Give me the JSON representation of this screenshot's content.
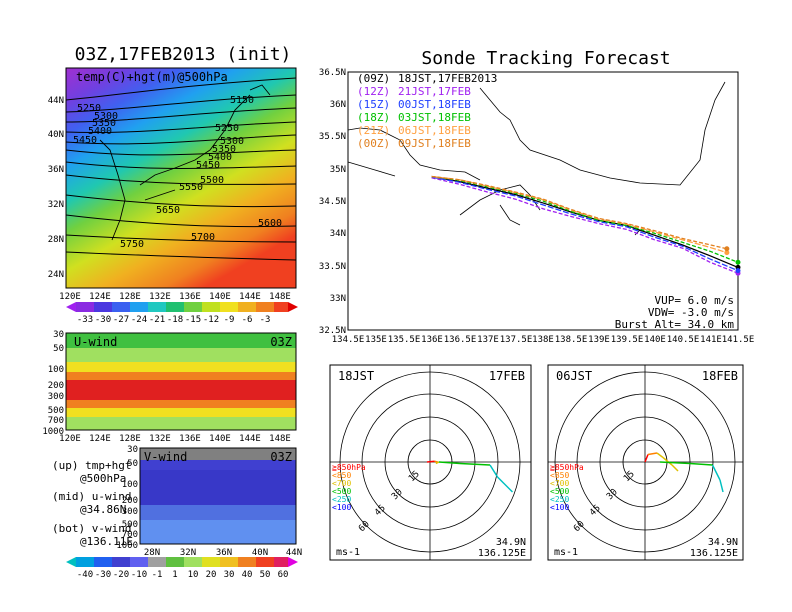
{
  "main_title": "Sonde Tracking Forecast",
  "map_panel": {
    "title": "03Z,17FEB2013 (init)",
    "subtitle": "temp(C)+hgt(m)@500hPa",
    "contour_labels": [
      {
        "text": "5150"
      },
      {
        "text": "5250"
      },
      {
        "text": "5300"
      },
      {
        "text": "5350"
      },
      {
        "text": "5400"
      },
      {
        "text": "5450"
      },
      {
        "text": "5250"
      },
      {
        "text": "5300"
      },
      {
        "text": "5350"
      },
      {
        "text": "5400"
      },
      {
        "text": "5450"
      },
      {
        "text": "5500"
      },
      {
        "text": "5550"
      },
      {
        "text": "5650"
      },
      {
        "text": "5600"
      },
      {
        "text": "5700"
      },
      {
        "text": "5750"
      }
    ],
    "lat_labels": [
      "44N",
      "40N",
      "36N",
      "32N",
      "28N",
      "24N"
    ],
    "lon_labels": [
      "120E",
      "124E",
      "128E",
      "132E",
      "136E",
      "140E",
      "144E",
      "148E"
    ],
    "temp_colorbar_labels": [
      "-33",
      "-30",
      "-27",
      "-24",
      "-21",
      "-18",
      "-15",
      "-12",
      "-9",
      "-6",
      "-3"
    ]
  },
  "uwind_panel": {
    "title": "U-wind",
    "time": "03Z",
    "pressure_labels": [
      "30",
      "50",
      "100",
      "200",
      "300",
      "500",
      "700",
      "1000"
    ],
    "lon_labels": [
      "120E",
      "124E",
      "128E",
      "132E",
      "136E",
      "140E",
      "144E",
      "148E"
    ]
  },
  "vwind_panel": {
    "title": "V-wind",
    "time": "03Z",
    "pressure_labels": [
      "30",
      "50",
      "100",
      "200",
      "300",
      "500",
      "700",
      "1000"
    ],
    "lat_labels": [
      "28N",
      "32N",
      "36N",
      "40N",
      "44N"
    ]
  },
  "notes": {
    "up_1": "(up) tmp+hgt",
    "up_2": "@500hPa",
    "mid_1": "(mid) u-wind",
    "mid_2": "@34.86N",
    "bot_1": "(bot) v-wind",
    "bot_2": "@136.11E"
  },
  "wind_colorbar_labels": [
    "-40",
    "-30",
    "-20",
    "-10",
    "-1",
    "1",
    "10",
    "20",
    "30",
    "40",
    "50",
    "60"
  ],
  "track_panel": {
    "lat_labels": [
      "36.5N",
      "36N",
      "35.5N",
      "35N",
      "34.5N",
      "34N",
      "33.5N",
      "33N",
      "32.5N"
    ],
    "lon_labels": [
      "134.5E",
      "135E",
      "135.5E",
      "136E",
      "136.5E",
      "137E",
      "137.5E",
      "138E",
      "138.5E",
      "139E",
      "139.5E",
      "140E",
      "140.5E",
      "141E",
      "141.5E"
    ],
    "legend": [
      {
        "init": "(09Z)",
        "label": "18JST,17FEB2013",
        "color": "#000000"
      },
      {
        "init": "(12Z)",
        "label": "21JST,17FEB",
        "color": "#a020f0"
      },
      {
        "init": "(15Z)",
        "label": "00JST,18FEB",
        "color": "#2040ff"
      },
      {
        "init": "(18Z)",
        "label": "03JST,18FEB",
        "color": "#00c000"
      },
      {
        "init": "(21Z)",
        "label": "06JST,18FEB",
        "color": "#ffa040"
      },
      {
        "init": "(00Z)",
        "label": "09JST,18FEB",
        "color": "#e08020"
      }
    ],
    "params": {
      "vup": "VUP=  6.0 m/s",
      "vdw": "VDW= -3.0 m/s",
      "burst": "Burst Alt= 34.0 km"
    }
  },
  "hodo_left": {
    "time_label": "18JST",
    "date_label": "17FEB",
    "ring_labels": [
      "15",
      "30",
      "45",
      "60"
    ],
    "levels": [
      {
        "text": "≧850hPa",
        "color": "#ff0000"
      },
      {
        "text": "<850",
        "color": "#ff8000"
      },
      {
        "text": "<700",
        "color": "#e0c000"
      },
      {
        "text": "<500",
        "color": "#00c000"
      },
      {
        "text": "<250",
        "color": "#00c0c0"
      },
      {
        "text": "<100",
        "color": "#0000ff"
      }
    ],
    "unit": "ms-1",
    "lat": "34.9N",
    "lon": "136.125E"
  },
  "hodo_right": {
    "time_label": "06JST",
    "date_label": "18FEB",
    "ring_labels": [
      "15",
      "30",
      "45",
      "60"
    ],
    "levels": [
      {
        "text": "≧850hPa",
        "color": "#ff0000"
      },
      {
        "text": "<850",
        "color": "#ff8000"
      },
      {
        "text": "<700",
        "color": "#e0c000"
      },
      {
        "text": "<500",
        "color": "#00c000"
      },
      {
        "text": "<250",
        "color": "#00c0c0"
      },
      {
        "text": "<100",
        "color": "#0000ff"
      }
    ],
    "unit": "ms-1",
    "lat": "34.9N",
    "lon": "136.125E"
  },
  "chart_data": [
    {
      "type": "line",
      "title": "Sonde Tracking Forecast",
      "xlim": [
        134.5,
        141.5
      ],
      "ylim": [
        32.5,
        36.5
      ],
      "series": [
        {
          "name": "18JST,17FEB2013",
          "color": "#000000",
          "x": [
            136.0,
            136.5,
            137.0,
            137.5,
            138.0,
            138.5,
            139.0,
            139.5,
            140.0,
            140.5,
            141.0,
            141.5
          ],
          "y": [
            34.88,
            34.8,
            34.7,
            34.6,
            34.47,
            34.33,
            34.2,
            34.12,
            33.97,
            33.82,
            33.65,
            33.47
          ]
        },
        {
          "name": "21JST,17FEB",
          "color": "#a020f0",
          "x": [
            136.0,
            136.5,
            137.0,
            137.5,
            138.0,
            138.5,
            139.0,
            139.5,
            140.0,
            140.5,
            141.0,
            141.5
          ],
          "y": [
            34.86,
            34.76,
            34.64,
            34.53,
            34.38,
            34.26,
            34.15,
            34.06,
            33.9,
            33.77,
            33.55,
            33.38
          ]
        },
        {
          "name": "00JST,18FEB",
          "color": "#2040ff",
          "x": [
            136.0,
            136.5,
            137.0,
            137.5,
            138.0,
            138.5,
            139.0,
            139.5,
            140.0,
            140.5,
            141.0,
            141.5
          ],
          "y": [
            34.87,
            34.79,
            34.68,
            34.58,
            34.44,
            34.3,
            34.18,
            34.1,
            33.94,
            33.8,
            33.6,
            33.42
          ]
        },
        {
          "name": "03JST,18FEB",
          "color": "#00c000",
          "x": [
            136.0,
            136.5,
            137.0,
            137.5,
            138.0,
            138.5,
            139.0,
            139.5,
            140.0,
            140.5,
            141.0,
            141.5
          ],
          "y": [
            34.88,
            34.82,
            34.72,
            34.62,
            34.5,
            34.34,
            34.2,
            34.12,
            34.0,
            33.86,
            33.72,
            33.55
          ]
        },
        {
          "name": "06JST,18FEB",
          "color": "#ffa040",
          "x": [
            136.0,
            136.5,
            137.0,
            137.5,
            138.0,
            138.5,
            139.0,
            139.5,
            140.0,
            140.5,
            141.0,
            141.3
          ],
          "y": [
            34.88,
            34.83,
            34.73,
            34.63,
            34.52,
            34.36,
            34.22,
            34.14,
            34.02,
            33.9,
            33.78,
            33.7
          ]
        },
        {
          "name": "09JST,18FEB",
          "color": "#e08020",
          "x": [
            136.0,
            136.5,
            137.0,
            137.5,
            138.0,
            138.5,
            139.0,
            139.5,
            140.0,
            140.5,
            141.0,
            141.3
          ],
          "y": [
            34.88,
            34.83,
            34.74,
            34.64,
            34.53,
            34.37,
            34.23,
            34.15,
            34.04,
            33.92,
            33.82,
            33.76
          ]
        }
      ]
    },
    {
      "type": "line",
      "title": "18JST 17FEB",
      "series": [
        {
          "name": "hodograph",
          "u": [
            -2,
            3,
            5,
            4,
            6
          ],
          "v": [
            0,
            0.5,
            0,
            -1,
            0
          ]
        },
        {
          "name": "upper",
          "u": [
            6,
            20,
            40,
            45,
            55
          ],
          "v": [
            0,
            -1,
            -2,
            -10,
            -20
          ]
        }
      ]
    },
    {
      "type": "line",
      "title": "06JST 18FEB",
      "series": [
        {
          "name": "hodograph",
          "u": [
            0,
            2,
            8,
            12,
            18,
            22
          ],
          "v": [
            0,
            5,
            6,
            3,
            -2,
            -6
          ]
        },
        {
          "name": "upper",
          "u": [
            10,
            30,
            45,
            50,
            52
          ],
          "v": [
            0,
            -1,
            -2,
            -12,
            -20
          ]
        }
      ]
    }
  ]
}
